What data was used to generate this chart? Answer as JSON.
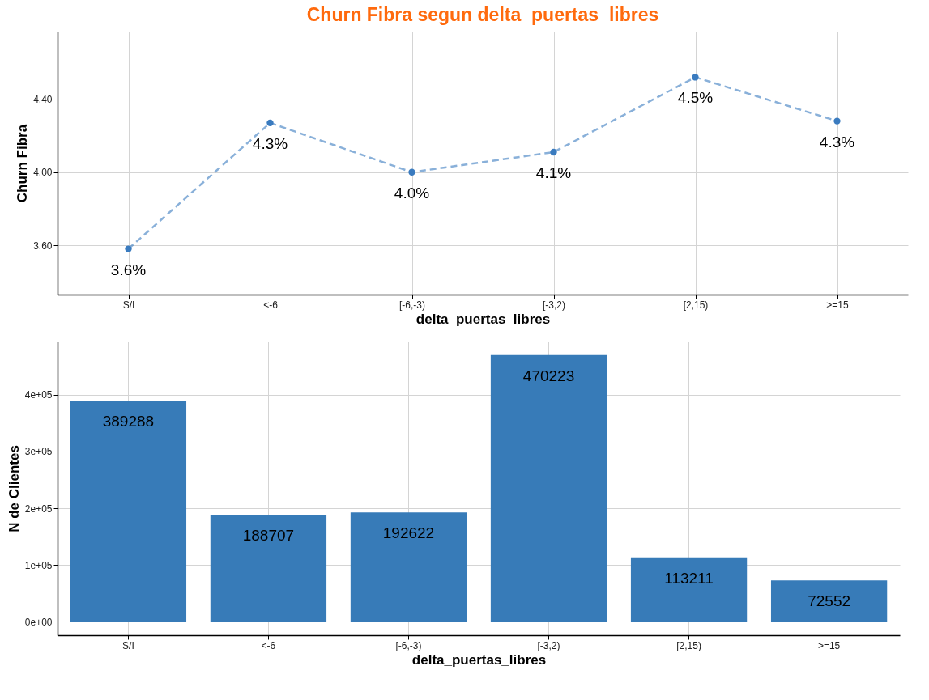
{
  "chart_data": [
    {
      "type": "line",
      "title": "Churn Fibra segun  delta_puertas_libres",
      "xlabel": "delta_puertas_libres",
      "ylabel": "Churn Fibra",
      "categories": [
        "S/I",
        "<-6",
        "[-6,-3)",
        "[-3,2)",
        "[2,15)",
        ">=15"
      ],
      "series": [
        {
          "color": "#3a7bbf",
          "values": [
            3.58,
            4.27,
            4.0,
            4.11,
            4.52,
            4.28
          ],
          "value_labels": [
            "3.6%",
            "4.3%",
            "4.0%",
            "4.1%",
            "4.5%",
            "4.3%"
          ]
        }
      ],
      "ylim": [
        3.33,
        4.77
      ],
      "yticks": [
        {
          "value": 3.6,
          "label": "3.60"
        },
        {
          "value": 4.0,
          "label": "4.00"
        },
        {
          "value": 4.4,
          "label": "4.40"
        }
      ],
      "grid": true,
      "marker": "circle",
      "line_style": "dashed"
    },
    {
      "type": "bar",
      "xlabel": "delta_puertas_libres",
      "ylabel": "N de Clientes",
      "categories": [
        "S/I",
        "<-6",
        "[-6,-3)",
        "[-3,2)",
        "[2,15)",
        ">=15"
      ],
      "series": [
        {
          "color": "#377bb8",
          "values": [
            389288,
            188707,
            192622,
            470223,
            113211,
            72552
          ]
        }
      ],
      "ylim": [
        -24000,
        494000
      ],
      "yticks": [
        {
          "value": 0,
          "label": "0e+00"
        },
        {
          "value": 100000,
          "label": "1e+05"
        },
        {
          "value": 200000,
          "label": "2e+05"
        },
        {
          "value": 300000,
          "label": "3e+05"
        },
        {
          "value": 400000,
          "label": "4e+05"
        }
      ],
      "grid": true,
      "data_labels": true
    }
  ]
}
